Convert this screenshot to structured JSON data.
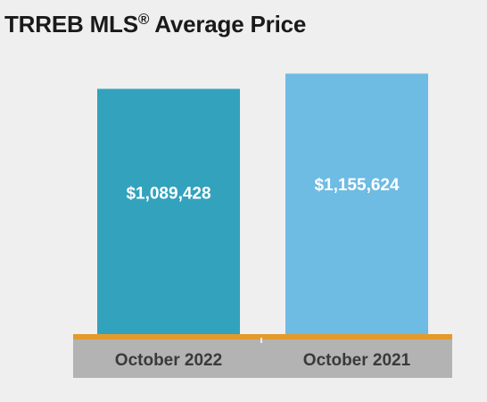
{
  "title": {
    "main": "TRREB MLS",
    "registered_mark": "®",
    "rest": " Average Price"
  },
  "chart_data": {
    "type": "bar",
    "title": "TRREB MLS® Average Price",
    "xlabel": "",
    "ylabel": "",
    "categories": [
      "October 2022",
      "October 2021"
    ],
    "values": [
      1089428,
      1155624
    ],
    "value_labels": [
      "$1,089,428",
      "$1,155,624"
    ],
    "bar_colors": [
      "#33a2bd",
      "#6ebbe3"
    ],
    "ylim": [
      0,
      1200000
    ],
    "grid": false,
    "legend": "none"
  },
  "colors": {
    "background": "#efefef",
    "axis_band": "#b3b3b3",
    "axis_line": "#e39b2b"
  }
}
